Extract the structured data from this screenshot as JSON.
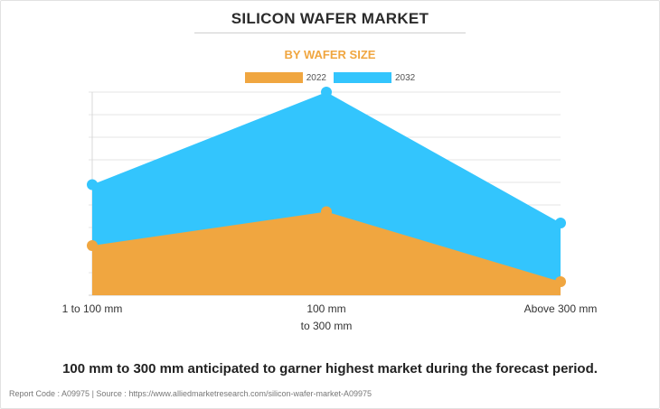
{
  "title": "SILICON WAFER MARKET",
  "subtitle": "BY WAFER SIZE",
  "caption": "100 mm to 300 mm anticipated to garner highest market during the forecast period.",
  "footer": "Report Code : A09975  |  Source : https://www.alliedmarketresearch.com/silicon-wafer-market-A09975",
  "colors": {
    "series_2022": "#f0a640",
    "series_2032": "#33c5fd",
    "accent": "#f0a640"
  },
  "chart_data": {
    "type": "area",
    "title": "BY WAFER SIZE",
    "categories": [
      [
        "1 to 100 mm"
      ],
      [
        "100 mm",
        "to 300 mm"
      ],
      [
        "Above 300 mm"
      ]
    ],
    "series": [
      {
        "name": "2022",
        "values": [
          2.2,
          3.7,
          0.6
        ]
      },
      {
        "name": "2032",
        "values": [
          4.9,
          9.0,
          3.2
        ]
      }
    ],
    "ylim": [
      0,
      9.0
    ],
    "grid": true,
    "legend": "top-center",
    "xlabel": "",
    "ylabel": ""
  }
}
